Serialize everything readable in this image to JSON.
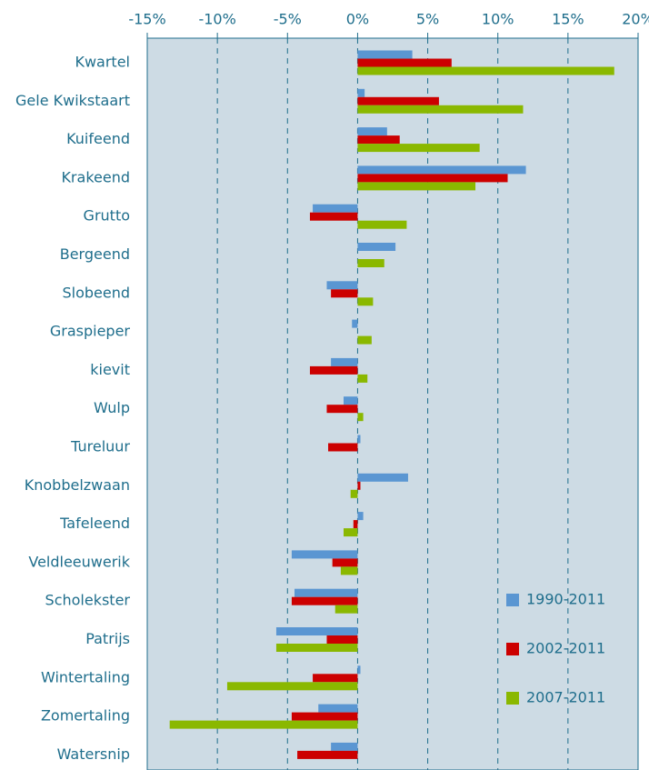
{
  "chart_data": {
    "type": "hbar",
    "categories": [
      "Kwartel",
      "Gele Kwikstaart",
      "Kuifeend",
      "Krakeend",
      "Grutto",
      "Bergeend",
      "Slobeend",
      "Graspieper",
      "kievit",
      "Wulp",
      "Tureluur",
      "Knobbelzwaan",
      "Tafeleend",
      "Veldleeuwerik",
      "Scholekster",
      "Patrijs",
      "Wintertaling",
      "Zomertaling",
      "Watersnip"
    ],
    "series": [
      {
        "name": "1990-2011",
        "color": "#5a96d2",
        "values": [
          3.9,
          0.5,
          2.1,
          12.0,
          -3.2,
          2.7,
          -2.2,
          -0.4,
          -1.9,
          -1.0,
          0.2,
          3.6,
          0.4,
          -4.7,
          -4.5,
          -5.8,
          0.2,
          -2.8,
          -1.9
        ]
      },
      {
        "name": "2002-2011",
        "color": "#cc0000",
        "values": [
          6.7,
          5.8,
          3.0,
          10.7,
          -3.4,
          0,
          -1.9,
          0,
          -3.4,
          -2.2,
          -2.1,
          0.2,
          -0.3,
          -1.8,
          -4.7,
          -2.2,
          -3.2,
          -4.7,
          -4.3
        ]
      },
      {
        "name": "2007-2011",
        "color": "#8ab800",
        "values": [
          18.3,
          11.8,
          8.7,
          8.4,
          3.5,
          1.9,
          1.1,
          1.0,
          0.7,
          0.4,
          0,
          -0.5,
          -1.0,
          -1.2,
          -1.6,
          -5.8,
          -9.3,
          -13.4,
          null
        ]
      }
    ],
    "xlim": [
      -15,
      20
    ],
    "xticks": [
      {
        "value": -15,
        "label": "-15%"
      },
      {
        "value": -10,
        "label": "-10%"
      },
      {
        "value": -5,
        "label": "-5%"
      },
      {
        "value": 0,
        "label": "0%"
      },
      {
        "value": 5,
        "label": "5%"
      },
      {
        "value": 10,
        "label": "10%"
      },
      {
        "value": 15,
        "label": "15%"
      },
      {
        "value": 20,
        "label": "20%"
      }
    ],
    "grid": true,
    "legend": "lower right",
    "background": "#cddbe4"
  }
}
